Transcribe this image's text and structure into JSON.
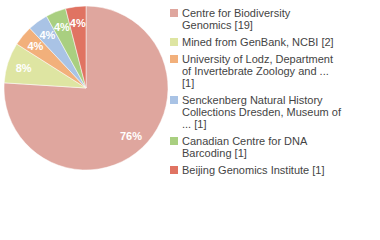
{
  "chart_data": {
    "type": "pie",
    "categories": [
      "Centre for Biodiversity Genomics [19]",
      "Mined from GenBank, NCBI [2]",
      "University of Lodz, Department of Invertebrate Zoology and ... [1]",
      "Senckenberg Natural History Collections Dresden, Museum of ... [1]",
      "Canadian Centre for DNA Barcoding [1]",
      "Beijing Genomics Institute [1]"
    ],
    "values": [
      76,
      8,
      4,
      4,
      4,
      4
    ],
    "value_labels": [
      "76%",
      "8%",
      "4%",
      "4%",
      "4%",
      "4%"
    ],
    "data_labels": true,
    "legend": "right",
    "colors": [
      "#dfa69e",
      "#dee5a2",
      "#f2b07b",
      "#a9c3e5",
      "#a9cf80",
      "#e07362"
    ]
  }
}
